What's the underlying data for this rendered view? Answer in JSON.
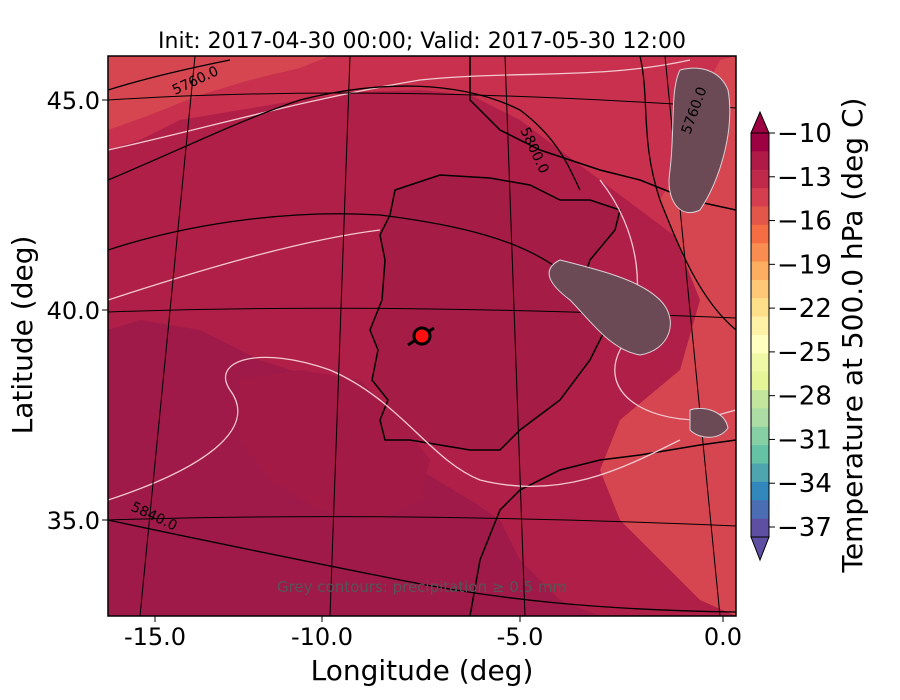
{
  "title": "Init: 2017-04-30 00:00; Valid: 2017-05-30 12:00",
  "axes": {
    "xlabel": "Longitude (deg)",
    "ylabel": "Latitude (deg)",
    "xticks": [
      "-15.0",
      "-10.0",
      "-5.0",
      "0.0"
    ],
    "yticks": [
      "45.0",
      "40.0",
      "35.0"
    ]
  },
  "colorbar": {
    "label": "Temperature at 500.0 hPa (deg C)",
    "ticks": [
      "−10",
      "−13",
      "−16",
      "−19",
      "−22",
      "−25",
      "−28",
      "−31",
      "−34",
      "−37"
    ],
    "colors": [
      "#9e0142",
      "#b01a47",
      "#c1294a",
      "#d53e4f",
      "#e25749",
      "#f46d43",
      "#f88c51",
      "#fdae61",
      "#fec877",
      "#fee08b",
      "#fff1a6",
      "#ffffbf",
      "#eef8a6",
      "#e6f598",
      "#c3e69e",
      "#abdda4",
      "#87cfa4",
      "#66c2a5",
      "#4ea5b0",
      "#3288bd",
      "#4a6db4",
      "#5e4fa2"
    ]
  },
  "contours": {
    "height_labels": [
      "5760.0",
      "5800.0",
      "5760.0",
      "5840.0"
    ]
  },
  "annotation": "Grey contours: precipitation ≥ 0.5 mm",
  "map_colors": {
    "dark": "#9f1a48",
    "mid": "#b01f48",
    "light": "#c8304d",
    "lighter": "#d64651"
  }
}
